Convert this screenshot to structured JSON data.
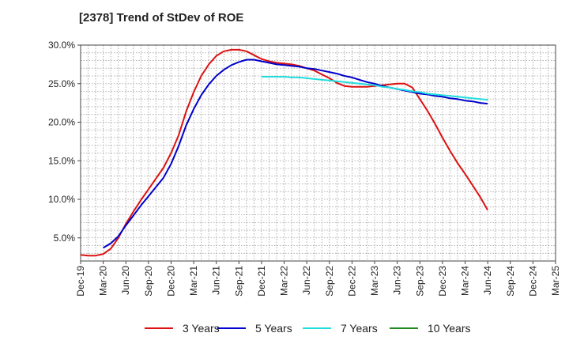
{
  "chart_data": {
    "type": "line",
    "title": "[2378]  Trend of StDev of ROE",
    "xlabel": "",
    "ylabel": "",
    "x_ticks": [
      "Dec-19",
      "Mar-20",
      "Jun-20",
      "Sep-20",
      "Dec-20",
      "Mar-21",
      "Jun-21",
      "Sep-21",
      "Dec-21",
      "Mar-22",
      "Jun-22",
      "Sep-22",
      "Dec-22",
      "Mar-23",
      "Jun-23",
      "Sep-23",
      "Dec-23",
      "Mar-24",
      "Jun-24",
      "Sep-24",
      "Dec-24",
      "Mar-25"
    ],
    "y_ticks": [
      "5.0%",
      "10.0%",
      "15.0%",
      "20.0%",
      "25.0%",
      "30.0%"
    ],
    "y_tick_values": [
      5,
      10,
      15,
      20,
      25,
      30
    ],
    "ylim": [
      2.0,
      30.0
    ],
    "grid": true,
    "legend_position": "bottom",
    "series": [
      {
        "name": "3 Years",
        "color": "#dd1111",
        "points": [
          [
            0,
            2.8
          ],
          [
            1,
            2.7
          ],
          [
            2,
            2.7
          ],
          [
            3,
            2.9
          ],
          [
            4,
            3.6
          ],
          [
            5,
            5.0
          ],
          [
            6,
            6.8
          ],
          [
            7,
            8.4
          ],
          [
            8,
            9.9
          ],
          [
            9,
            11.3
          ],
          [
            10,
            12.7
          ],
          [
            11,
            14.1
          ],
          [
            12,
            16.0
          ],
          [
            13,
            18.3
          ],
          [
            14,
            21.4
          ],
          [
            15,
            23.9
          ],
          [
            16,
            26.0
          ],
          [
            17,
            27.5
          ],
          [
            18,
            28.6
          ],
          [
            19,
            29.2
          ],
          [
            20,
            29.4
          ],
          [
            21,
            29.4
          ],
          [
            22,
            29.2
          ],
          [
            23,
            28.7
          ],
          [
            24,
            28.2
          ],
          [
            25,
            27.9
          ],
          [
            26,
            27.7
          ],
          [
            27,
            27.6
          ],
          [
            28,
            27.5
          ],
          [
            29,
            27.3
          ],
          [
            30,
            27.0
          ],
          [
            31,
            26.7
          ],
          [
            32,
            26.2
          ],
          [
            33,
            25.7
          ],
          [
            34,
            25.1
          ],
          [
            35,
            24.7
          ],
          [
            36,
            24.6
          ],
          [
            37,
            24.6
          ],
          [
            38,
            24.6
          ],
          [
            39,
            24.7
          ],
          [
            40,
            24.8
          ],
          [
            41,
            24.9
          ],
          [
            42,
            25.0
          ],
          [
            43,
            25.0
          ],
          [
            44,
            24.5
          ],
          [
            45,
            23.0
          ],
          [
            46,
            21.5
          ],
          [
            47,
            19.8
          ],
          [
            48,
            18.0
          ],
          [
            49,
            16.3
          ],
          [
            50,
            14.7
          ],
          [
            51,
            13.3
          ],
          [
            52,
            11.8
          ],
          [
            53,
            10.3
          ],
          [
            54,
            8.6
          ]
        ]
      },
      {
        "name": "5 Years",
        "color": "#0000cc",
        "points": [
          [
            3,
            3.7
          ],
          [
            4,
            4.3
          ],
          [
            5,
            5.2
          ],
          [
            6,
            6.6
          ],
          [
            7,
            7.9
          ],
          [
            8,
            9.2
          ],
          [
            9,
            10.4
          ],
          [
            10,
            11.6
          ],
          [
            11,
            12.8
          ],
          [
            12,
            14.6
          ],
          [
            13,
            16.9
          ],
          [
            14,
            19.6
          ],
          [
            15,
            21.7
          ],
          [
            16,
            23.5
          ],
          [
            17,
            24.9
          ],
          [
            18,
            26.0
          ],
          [
            19,
            26.8
          ],
          [
            20,
            27.4
          ],
          [
            21,
            27.8
          ],
          [
            22,
            28.1
          ],
          [
            23,
            28.1
          ],
          [
            24,
            27.9
          ],
          [
            25,
            27.7
          ],
          [
            26,
            27.5
          ],
          [
            27,
            27.4
          ],
          [
            28,
            27.3
          ],
          [
            29,
            27.2
          ],
          [
            30,
            27.0
          ],
          [
            31,
            26.9
          ],
          [
            32,
            26.7
          ],
          [
            33,
            26.5
          ],
          [
            34,
            26.3
          ],
          [
            35,
            26.0
          ],
          [
            36,
            25.8
          ],
          [
            37,
            25.5
          ],
          [
            38,
            25.2
          ],
          [
            39,
            25.0
          ],
          [
            40,
            24.7
          ],
          [
            41,
            24.5
          ],
          [
            42,
            24.3
          ],
          [
            43,
            24.1
          ],
          [
            44,
            23.9
          ],
          [
            45,
            23.7
          ],
          [
            46,
            23.6
          ],
          [
            47,
            23.4
          ],
          [
            48,
            23.3
          ],
          [
            49,
            23.1
          ],
          [
            50,
            23.0
          ],
          [
            51,
            22.8
          ],
          [
            52,
            22.7
          ],
          [
            53,
            22.5
          ],
          [
            54,
            22.4
          ]
        ]
      },
      {
        "name": "7 Years",
        "color": "#22dddd",
        "points": [
          [
            24,
            25.9
          ],
          [
            25,
            25.9
          ],
          [
            26,
            25.9
          ],
          [
            27,
            25.9
          ],
          [
            28,
            25.8
          ],
          [
            29,
            25.8
          ],
          [
            30,
            25.7
          ],
          [
            31,
            25.6
          ],
          [
            32,
            25.5
          ],
          [
            33,
            25.4
          ],
          [
            34,
            25.3
          ],
          [
            35,
            25.2
          ],
          [
            36,
            25.1
          ],
          [
            37,
            25.0
          ],
          [
            38,
            24.9
          ],
          [
            39,
            24.8
          ],
          [
            40,
            24.6
          ],
          [
            41,
            24.5
          ],
          [
            42,
            24.3
          ],
          [
            43,
            24.2
          ],
          [
            44,
            24.0
          ],
          [
            45,
            23.9
          ],
          [
            46,
            23.7
          ],
          [
            47,
            23.6
          ],
          [
            48,
            23.5
          ],
          [
            49,
            23.4
          ],
          [
            50,
            23.3
          ],
          [
            51,
            23.2
          ],
          [
            52,
            23.1
          ],
          [
            53,
            23.0
          ],
          [
            54,
            22.9
          ]
        ]
      },
      {
        "name": "10 Years",
        "color": "#228822",
        "points": []
      }
    ]
  }
}
